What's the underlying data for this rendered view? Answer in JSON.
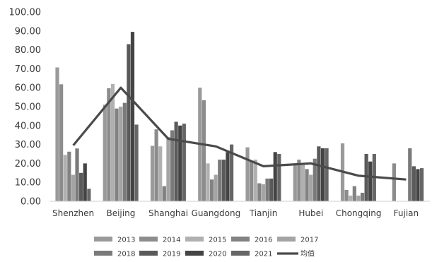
{
  "chart_data": {
    "type": "bar",
    "title": "",
    "xlabel": "",
    "ylabel": "",
    "ylim": [
      0,
      100
    ],
    "yticks": [
      "0.00",
      "10.00",
      "20.00",
      "30.00",
      "40.00",
      "50.00",
      "60.00",
      "70.00",
      "80.00",
      "90.00",
      "100.00"
    ],
    "grid": false,
    "legend_position": "bottom",
    "categories": [
      "Shenzhen",
      "Beijing",
      "Shanghai",
      "Guangdong",
      "Tianjin",
      "Hubei",
      "Chongqing",
      "Fujian"
    ],
    "series": [
      {
        "name": "2013",
        "color": "#9a9a9a",
        "values": [
          70.7,
          51.0,
          29.3,
          60.0,
          28.5,
          19.6,
          30.6,
          0
        ]
      },
      {
        "name": "2014",
        "color": "#8c8c8c",
        "values": [
          61.8,
          59.7,
          38.0,
          53.4,
          21.0,
          22.0,
          6.0,
          20.0
        ]
      },
      {
        "name": "2015",
        "color": "#b0b0b0",
        "values": [
          24.5,
          62.0,
          29.0,
          20.0,
          22.0,
          20.0,
          3.0,
          0
        ]
      },
      {
        "name": "2016",
        "color": "#828282",
        "values": [
          26.2,
          49.0,
          8.0,
          11.5,
          9.5,
          17.0,
          8.0,
          0
        ]
      },
      {
        "name": "2017",
        "color": "#a4a4a4",
        "values": [
          14.0,
          50.0,
          34.0,
          14.0,
          9.0,
          14.0,
          3.0,
          0
        ]
      },
      {
        "name": "2018",
        "color": "#7a7a7a",
        "values": [
          27.9,
          52.0,
          37.5,
          22.0,
          12.0,
          22.5,
          4.5,
          28.0
        ]
      },
      {
        "name": "2019",
        "color": "#5a5a5a",
        "values": [
          15.0,
          83.0,
          42.0,
          22.0,
          12.0,
          29.0,
          25.0,
          18.5
        ]
      },
      {
        "name": "2020",
        "color": "#444444",
        "values": [
          20.0,
          89.5,
          40.0,
          26.0,
          26.0,
          28.0,
          21.0,
          17.0
        ]
      },
      {
        "name": "2021",
        "color": "#666666",
        "values": [
          6.6,
          40.5,
          41.0,
          30.0,
          25.0,
          28.0,
          25.0,
          17.5
        ]
      }
    ],
    "line_series": {
      "name": "均值",
      "color": "#4a4a4a",
      "values": [
        29.5,
        60.0,
        33.0,
        29.0,
        18.5,
        20.0,
        13.5,
        11.5
      ]
    }
  }
}
